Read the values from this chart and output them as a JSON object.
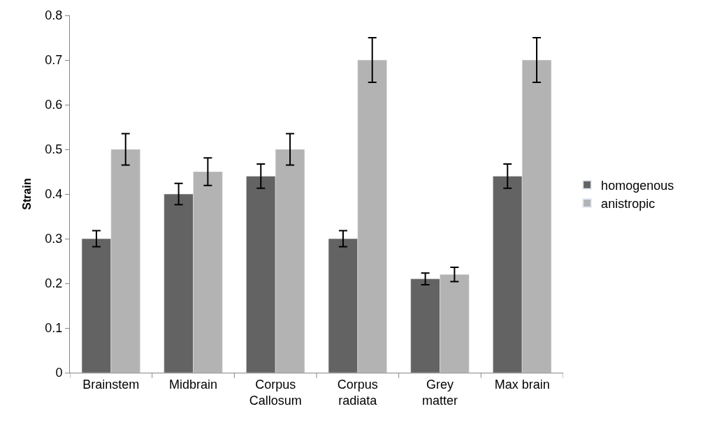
{
  "chart_data": {
    "type": "bar",
    "ylabel": "Strain",
    "categories": [
      "Brainstem",
      "Midbrain",
      "Corpus\nCallosum",
      "Corpus\nradiata",
      "Grey\nmatter",
      "Max brain"
    ],
    "series": [
      {
        "name": "homogenous",
        "color": "#636363",
        "values": [
          0.3,
          0.4,
          0.44,
          0.3,
          0.21,
          0.44
        ],
        "errors": [
          0.018,
          0.024,
          0.027,
          0.018,
          0.013,
          0.027
        ]
      },
      {
        "name": "anistropic",
        "color": "#b3b3b3",
        "values": [
          0.5,
          0.45,
          0.5,
          0.7,
          0.22,
          0.7
        ],
        "errors": [
          0.035,
          0.031,
          0.035,
          0.05,
          0.016,
          0.05
        ]
      }
    ],
    "ylim": [
      0,
      0.8
    ],
    "yticks": [
      0,
      0.1,
      0.2,
      0.3,
      0.4,
      0.5,
      0.6,
      0.7,
      0.8
    ],
    "grid": false,
    "legend": "right"
  }
}
